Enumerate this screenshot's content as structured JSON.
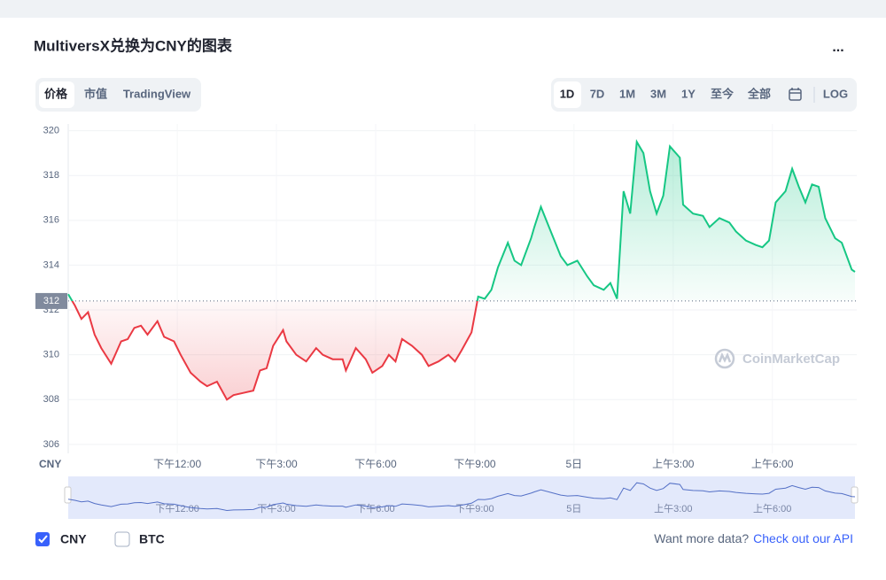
{
  "header": {
    "title": "MultiversX兑换为CNY的图表",
    "menu": "..."
  },
  "tabs": [
    "价格",
    "市值",
    "TradingView"
  ],
  "ranges": [
    "1D",
    "7D",
    "1M",
    "3M",
    "1Y",
    "至今",
    "全部",
    "LOG"
  ],
  "chart_data": {
    "type": "line",
    "y_label": "CNY",
    "watermark": "CoinMarketCap",
    "x": [
      -3.3,
      -3.1,
      -2.9,
      -2.7,
      -2.5,
      -2.3,
      -2.0,
      -1.7,
      -1.5,
      -1.3,
      -1.1,
      -0.9,
      -0.6,
      -0.4,
      -0.1,
      0.1,
      0.4,
      0.7,
      0.9,
      1.2,
      1.5,
      1.7,
      2.0,
      2.3,
      2.5,
      2.7,
      2.9,
      3.2,
      3.3,
      3.6,
      3.9,
      4.2,
      4.4,
      4.7,
      5.0,
      5.1,
      5.4,
      5.7,
      5.9,
      6.2,
      6.4,
      6.6,
      6.8,
      7.1,
      7.4,
      7.6,
      7.9,
      8.2,
      8.4,
      8.6,
      8.9,
      9.1,
      9.3,
      9.5,
      9.7,
      10.0,
      10.2,
      10.4,
      10.7,
      10.8,
      11.0,
      11.3,
      11.6,
      11.8,
      12.1,
      12.4,
      12.6,
      12.9,
      13.1,
      13.3,
      13.5,
      13.7,
      13.9,
      14.1,
      14.3,
      14.5,
      14.7,
      14.9,
      15.2,
      15.3,
      15.6,
      15.9,
      16.1,
      16.4,
      16.7,
      16.9,
      17.2,
      17.5,
      17.7,
      17.9,
      18.1,
      18.4,
      18.6,
      18.8,
      19.0,
      19.2,
      19.4,
      19.6,
      19.9,
      20.1,
      20.4,
      20.5
    ],
    "values": [
      312.7,
      312.2,
      311.6,
      311.9,
      310.9,
      310.3,
      309.6,
      310.6,
      310.7,
      311.2,
      311.3,
      310.9,
      311.5,
      310.8,
      310.6,
      310.0,
      309.2,
      308.8,
      308.6,
      308.8,
      308.0,
      308.2,
      308.3,
      308.4,
      309.3,
      309.4,
      310.4,
      311.1,
      310.6,
      310.0,
      309.7,
      310.3,
      310.0,
      309.8,
      309.8,
      309.3,
      310.3,
      309.8,
      309.2,
      309.5,
      310.0,
      309.7,
      310.7,
      310.4,
      310.0,
      309.5,
      309.7,
      310.0,
      309.7,
      310.2,
      311.0,
      312.6,
      312.5,
      312.9,
      313.9,
      315.0,
      314.2,
      314.0,
      315.2,
      315.7,
      316.6,
      315.5,
      314.4,
      314.0,
      314.2,
      313.5,
      313.1,
      312.9,
      313.2,
      312.5,
      317.3,
      316.3,
      319.5,
      319.0,
      317.3,
      316.3,
      317.1,
      319.3,
      318.8,
      316.7,
      316.3,
      316.2,
      315.7,
      316.1,
      315.9,
      315.5,
      315.1,
      314.9,
      314.8,
      315.1,
      316.8,
      317.3,
      318.3,
      317.5,
      316.8,
      317.6,
      317.5,
      316.1,
      315.2,
      315.0,
      313.8,
      313.7
    ],
    "color_up": "#16c784",
    "color_down": "#ea3943",
    "baseline": {
      "value": 312.4,
      "label": "312"
    },
    "xlim": [
      -3.3,
      20.5
    ],
    "ylim": [
      305.6,
      320.3
    ],
    "xticks": [
      {
        "value": 0,
        "label": "下午12:00"
      },
      {
        "value": 3,
        "label": "下午3:00"
      },
      {
        "value": 6,
        "label": "下午6:00"
      },
      {
        "value": 9,
        "label": "下午9:00"
      },
      {
        "value": 12,
        "label": "5日"
      },
      {
        "value": 15,
        "label": "上午3:00"
      },
      {
        "value": 18,
        "label": "上午6:00"
      }
    ],
    "yticks": [
      306,
      308,
      310,
      312,
      314,
      316,
      318,
      320
    ],
    "grid": true
  },
  "legend": [
    {
      "label": "CNY",
      "checked": true
    },
    {
      "label": "BTC",
      "checked": false
    }
  ],
  "footer": {
    "text": "Want more data?",
    "link": "Check out our API"
  }
}
